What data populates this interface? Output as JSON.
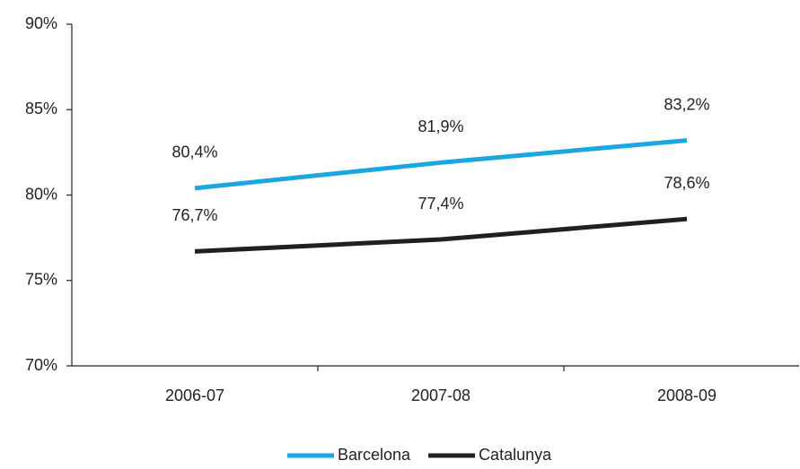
{
  "chart_data": {
    "type": "line",
    "categories": [
      "2006-07",
      "2007-08",
      "2008-09"
    ],
    "series": [
      {
        "name": "Barcelona",
        "color": "#1aa7e0",
        "values": [
          80.4,
          81.9,
          83.2
        ],
        "value_labels": [
          "80,4%",
          "81,9%",
          "83,2%"
        ]
      },
      {
        "name": "Catalunya",
        "color": "#231f20",
        "values": [
          76.7,
          77.4,
          78.6
        ],
        "value_labels": [
          "76,7%",
          "77,4%",
          "78,6%"
        ]
      }
    ],
    "ylim": [
      70,
      90
    ],
    "yticks": [
      {
        "value": 70,
        "label": "70%"
      },
      {
        "value": 75,
        "label": "75%"
      },
      {
        "value": 80,
        "label": "80%"
      },
      {
        "value": 85,
        "label": "85%"
      },
      {
        "value": 90,
        "label": "90%"
      }
    ],
    "grid": false,
    "legend": "bottom"
  }
}
